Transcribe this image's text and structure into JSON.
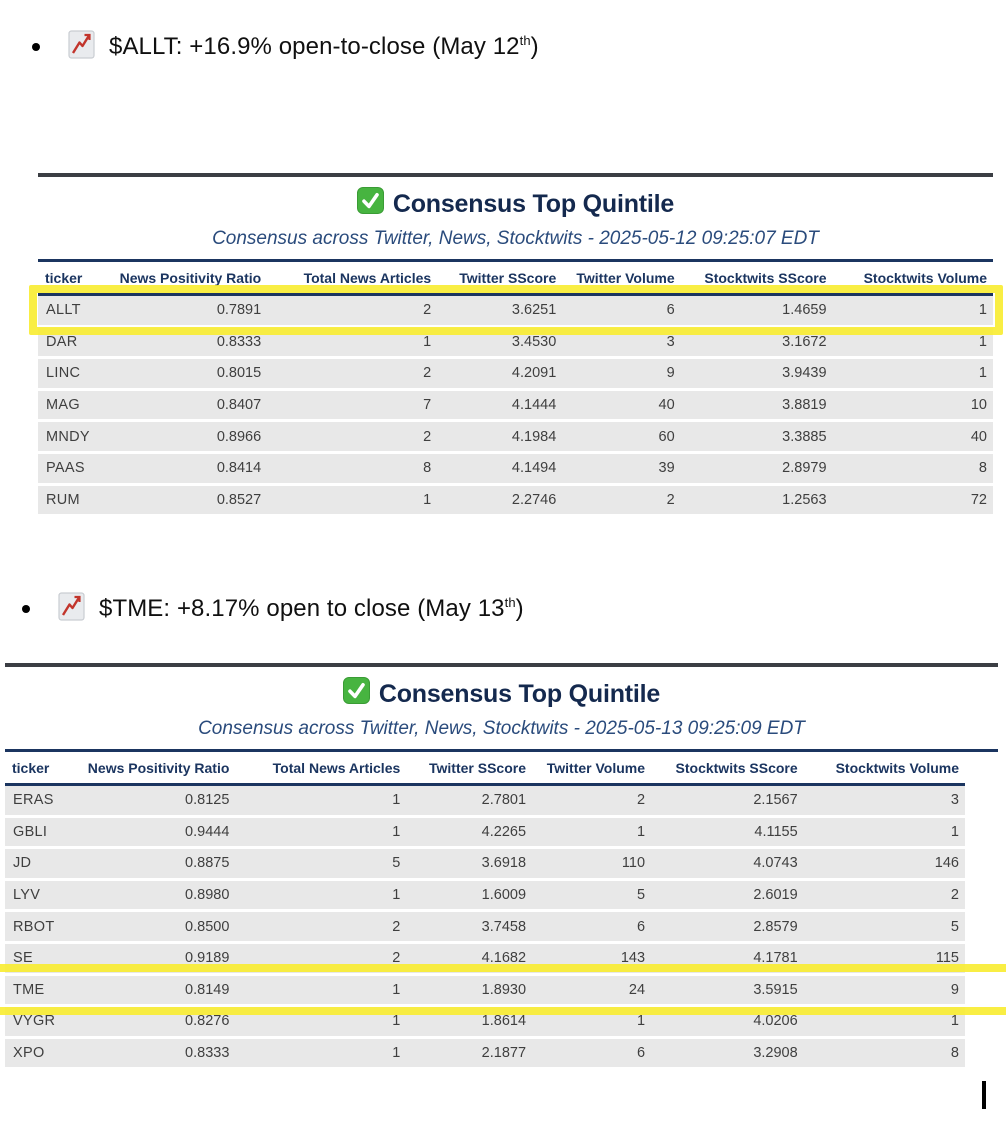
{
  "bullets": [
    {
      "icon": "chart-increasing",
      "prefix": "$ALLT: +16.9% open-to-close (May 12",
      "superscript": "th",
      "suffix": ")"
    },
    {
      "icon": "chart-increasing",
      "prefix": "$TME: +8.17% open to close (May 13",
      "superscript": "th",
      "suffix": ")"
    }
  ],
  "tables": [
    {
      "badge_icon": "check-mark-button",
      "title": "Consensus Top Quintile",
      "subtitle": "Consensus across Twitter, News, Stocktwits - 2025-05-12 09:25:07 EDT",
      "columns": [
        "ticker",
        "News Positivity Ratio",
        "Total News Articles",
        "Twitter SScore",
        "Twitter Volume",
        "Stocktwits SScore",
        "Stocktwits Volume"
      ],
      "rows": [
        [
          "ALLT",
          "0.7891",
          "2",
          "3.6251",
          "6",
          "1.4659",
          "1"
        ],
        [
          "DAR",
          "0.8333",
          "1",
          "3.4530",
          "3",
          "3.1672",
          "1"
        ],
        [
          "LINC",
          "0.8015",
          "2",
          "4.2091",
          "9",
          "3.9439",
          "1"
        ],
        [
          "MAG",
          "0.8407",
          "7",
          "4.1444",
          "40",
          "3.8819",
          "10"
        ],
        [
          "MNDY",
          "0.8966",
          "2",
          "4.1984",
          "60",
          "3.3885",
          "40"
        ],
        [
          "PAAS",
          "0.8414",
          "8",
          "4.1494",
          "39",
          "2.8979",
          "8"
        ],
        [
          "RUM",
          "0.8527",
          "1",
          "2.2746",
          "2",
          "1.2563",
          "72"
        ]
      ],
      "highlighted_ticker": "ALLT",
      "highlight_row_index": 0
    },
    {
      "badge_icon": "check-mark-button",
      "title": "Consensus Top Quintile",
      "subtitle": "Consensus across Twitter, News, Stocktwits - 2025-05-13 09:25:09 EDT",
      "columns": [
        "ticker",
        "News Positivity Ratio",
        "Total News Articles",
        "Twitter SScore",
        "Twitter Volume",
        "Stocktwits SScore",
        "Stocktwits Volume"
      ],
      "rows": [
        [
          "ERAS",
          "0.8125",
          "1",
          "2.7801",
          "2",
          "2.1567",
          "3"
        ],
        [
          "GBLI",
          "0.9444",
          "1",
          "4.2265",
          "1",
          "4.1155",
          "1"
        ],
        [
          "JD",
          "0.8875",
          "5",
          "3.6918",
          "110",
          "4.0743",
          "146"
        ],
        [
          "LYV",
          "0.8980",
          "1",
          "1.6009",
          "5",
          "2.6019",
          "2"
        ],
        [
          "RBOT",
          "0.8500",
          "2",
          "3.7458",
          "6",
          "2.8579",
          "5"
        ],
        [
          "SE",
          "0.9189",
          "2",
          "4.1682",
          "143",
          "4.1781",
          "115"
        ],
        [
          "TME",
          "0.8149",
          "1",
          "1.8930",
          "24",
          "3.5915",
          "9"
        ],
        [
          "VYGR",
          "0.8276",
          "1",
          "1.8614",
          "1",
          "4.0206",
          "1"
        ],
        [
          "XPO",
          "0.8333",
          "1",
          "2.1877",
          "6",
          "3.2908",
          "8"
        ]
      ],
      "highlighted_ticker": "TME",
      "highlight_row_index": 6
    }
  ],
  "colors": {
    "title_navy": "#14294e",
    "header_navy": "#1b3560",
    "subtitle_blue": "#2a4b7c",
    "row_gray": "#e8e8e8",
    "highlight_yellow": "#f8ec2a",
    "rule_dark": "#3b3e44",
    "cell_text": "#3f3f3f"
  },
  "text_cursor": {
    "visible": "true"
  }
}
